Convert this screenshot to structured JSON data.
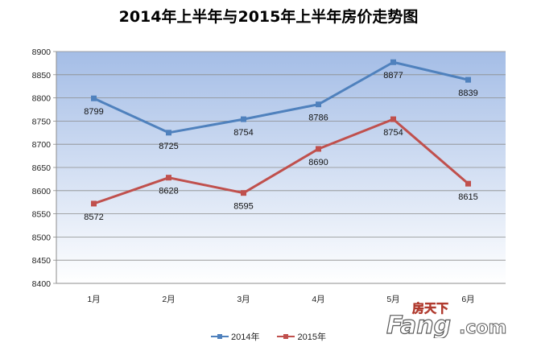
{
  "chart_data": {
    "type": "line",
    "title": "2014年上半年与2015年上半年房价走势图",
    "categories": [
      "1月",
      "2月",
      "3月",
      "4月",
      "5月",
      "6月"
    ],
    "series": [
      {
        "name": "2014年",
        "values": [
          8799,
          8725,
          8754,
          8786,
          8877,
          8839
        ],
        "color": "#4f81bd"
      },
      {
        "name": "2015年",
        "values": [
          8572,
          8628,
          8595,
          8690,
          8754,
          8615
        ],
        "color": "#c0504d"
      }
    ],
    "y_ticks": [
      "8900",
      "8850",
      "8800",
      "8750",
      "8700",
      "8650",
      "8600",
      "8550",
      "8500",
      "8450",
      "8400"
    ],
    "ylim": [
      8400,
      8900
    ],
    "grid": true,
    "legend_position": "bottom",
    "background_gradient": [
      "#a4bde6",
      "#ffffff"
    ]
  },
  "watermark": {
    "text": "Fang.com",
    "chinese": "房天下"
  }
}
